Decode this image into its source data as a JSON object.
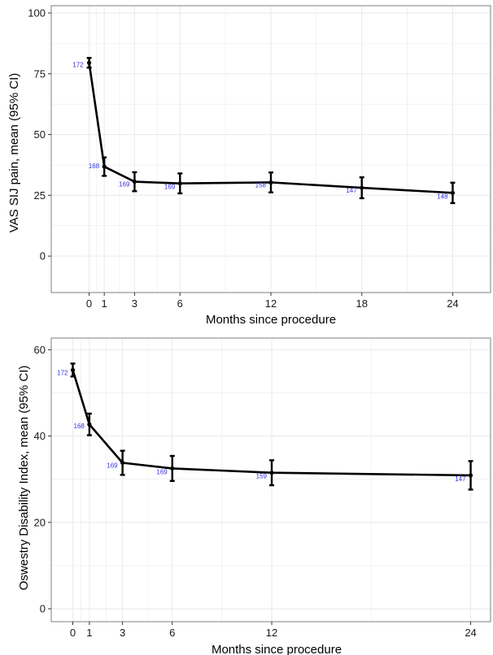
{
  "chart_data": [
    {
      "type": "line",
      "xlabel": "Months since procedure",
      "ylabel": "VAS SIJ pain, mean (95% CI)",
      "xlim": [
        -2.5,
        26.5
      ],
      "ylim": [
        -15,
        103
      ],
      "x_ticks": [
        0,
        1,
        3,
        6,
        12,
        18,
        24
      ],
      "x_tick_labels": [
        "0",
        "1",
        "3",
        "6",
        "12",
        "18",
        "24"
      ],
      "y_ticks": [
        0,
        25,
        50,
        75,
        100
      ],
      "y_tick_labels": [
        "0",
        "25",
        "50",
        "75",
        "100"
      ],
      "grid": true,
      "series": [
        {
          "x": [
            0,
            1,
            3,
            6,
            12,
            18,
            24
          ],
          "y": [
            79.5,
            36.8,
            30.6,
            29.9,
            30.3,
            28.1,
            26.0
          ],
          "ci_low": [
            77.5,
            33.0,
            26.7,
            25.8,
            26.2,
            23.8,
            21.8
          ],
          "ci_high": [
            81.5,
            40.6,
            34.5,
            34.0,
            34.4,
            32.4,
            30.2
          ],
          "n": [
            "172",
            "168",
            "169",
            "169",
            "158",
            "147",
            "148"
          ],
          "color": "#000000"
        }
      ],
      "label_color": "#3333dd",
      "panel_border_color": "#7f7f7f",
      "grid_color": "#ebebeb"
    },
    {
      "type": "line",
      "xlabel": "Months since procedure",
      "ylabel": "Oswestry Disability Index, mean (95% CI)",
      "xlim": [
        -1.3,
        25.2
      ],
      "ylim": [
        -3,
        62.7
      ],
      "x_ticks": [
        0,
        1,
        3,
        6,
        12,
        24
      ],
      "x_tick_labels": [
        "0",
        "1",
        "3",
        "6",
        "12",
        "24"
      ],
      "y_ticks": [
        0,
        20,
        40,
        60
      ],
      "y_tick_labels": [
        "0",
        "20",
        "40",
        "60"
      ],
      "grid": true,
      "series": [
        {
          "x": [
            0,
            1,
            3,
            6,
            12,
            24
          ],
          "y": [
            55.3,
            42.7,
            33.8,
            32.5,
            31.5,
            30.9
          ],
          "ci_low": [
            53.8,
            40.2,
            31.0,
            29.6,
            28.6,
            27.6
          ],
          "ci_high": [
            56.8,
            45.2,
            36.6,
            35.4,
            34.4,
            34.2
          ],
          "n": [
            "172",
            "168",
            "169",
            "169",
            "159",
            "147"
          ],
          "color": "#000000"
        }
      ],
      "label_color": "#3333dd",
      "panel_border_color": "#7f7f7f",
      "grid_color": "#ebebeb"
    }
  ]
}
